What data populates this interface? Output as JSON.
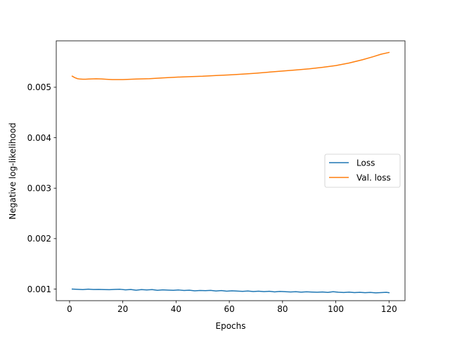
{
  "chart_data": {
    "type": "line",
    "title": "",
    "xlabel": "Epochs",
    "ylabel": "Negative log-likelihood",
    "xlim": [
      -5,
      126
    ],
    "ylim": [
      0.00077,
      0.00592
    ],
    "xticks": [
      0,
      20,
      40,
      60,
      80,
      100,
      120
    ],
    "xtick_labels": [
      "0",
      "20",
      "40",
      "60",
      "80",
      "100",
      "120"
    ],
    "yticks": [
      0.001,
      0.002,
      0.003,
      0.004,
      0.005
    ],
    "ytick_labels": [
      "0.001",
      "0.002",
      "0.003",
      "0.004",
      "0.005"
    ],
    "grid": false,
    "legend_position": "center-right",
    "series": [
      {
        "name": "Loss",
        "color": "#1f77b4",
        "x": [
          1,
          3,
          5,
          7,
          9,
          11,
          13,
          15,
          17,
          19,
          21,
          23,
          25,
          27,
          29,
          31,
          33,
          35,
          37,
          39,
          41,
          43,
          45,
          47,
          49,
          51,
          53,
          55,
          57,
          59,
          61,
          63,
          65,
          67,
          69,
          71,
          73,
          75,
          77,
          79,
          81,
          83,
          85,
          87,
          89,
          91,
          93,
          95,
          97,
          99,
          101,
          103,
          105,
          107,
          109,
          111,
          113,
          115,
          117,
          119,
          120
        ],
        "y": [
          0.001,
          0.000995,
          0.00099,
          0.000998,
          0.000992,
          0.000994,
          0.00099,
          0.000988,
          0.000993,
          0.000996,
          0.000985,
          0.000992,
          0.000978,
          0.00099,
          0.000983,
          0.00099,
          0.000976,
          0.000985,
          0.00098,
          0.000975,
          0.000982,
          0.000972,
          0.000978,
          0.000966,
          0.000973,
          0.000968,
          0.000974,
          0.000962,
          0.00097,
          0.000958,
          0.000966,
          0.00096,
          0.000955,
          0.000962,
          0.000952,
          0.000959,
          0.000949,
          0.000956,
          0.000945,
          0.000953,
          0.000948,
          0.000943,
          0.000948,
          0.00094,
          0.000946,
          0.000941,
          0.000937,
          0.000943,
          0.000934,
          0.000948,
          0.000938,
          0.000932,
          0.00094,
          0.00093,
          0.000936,
          0.000928,
          0.000934,
          0.000926,
          0.000931,
          0.000935,
          0.000928
        ]
      },
      {
        "name": "Val. loss",
        "color": "#ff7f0e",
        "x": [
          1,
          2,
          3,
          4,
          5,
          6,
          8,
          10,
          12,
          14,
          16,
          18,
          20,
          25,
          30,
          35,
          40,
          45,
          50,
          55,
          60,
          65,
          70,
          75,
          80,
          85,
          90,
          95,
          100,
          105,
          110,
          114,
          117,
          120
        ],
        "y": [
          0.00522,
          0.00519,
          0.00517,
          0.005162,
          0.00516,
          0.00516,
          0.005165,
          0.005168,
          0.005165,
          0.005158,
          0.005153,
          0.005152,
          0.005152,
          0.005162,
          0.00517,
          0.005185,
          0.0052,
          0.00521,
          0.005218,
          0.005232,
          0.005245,
          0.00526,
          0.005278,
          0.0053,
          0.005322,
          0.005342,
          0.005365,
          0.005395,
          0.00543,
          0.00548,
          0.005545,
          0.005605,
          0.005655,
          0.00569
        ]
      }
    ]
  }
}
